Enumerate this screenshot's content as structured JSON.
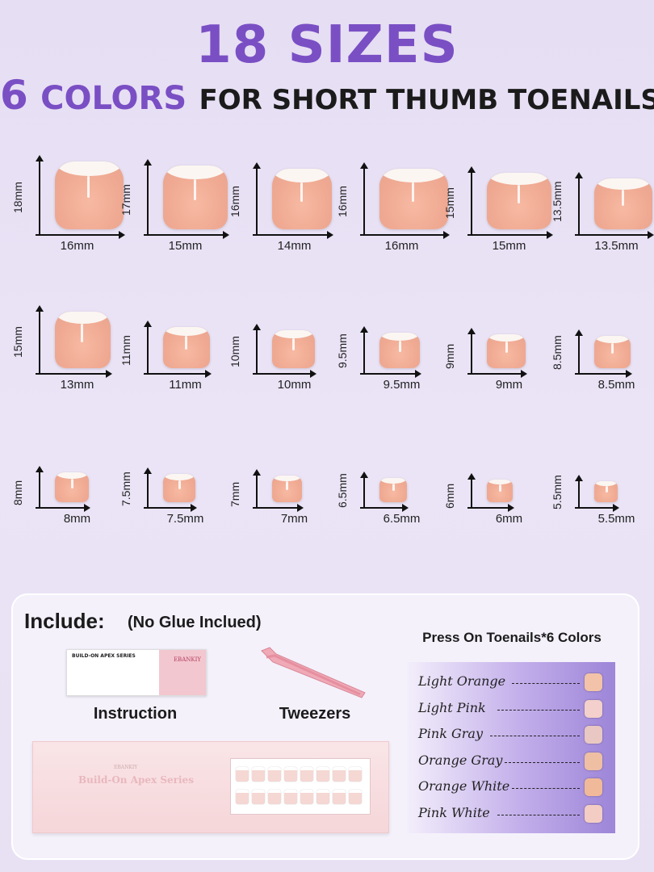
{
  "header": {
    "line1": "18 SIZES",
    "line2_number": "6",
    "line2_colors": "COLORS",
    "line2_rest": "FOR SHORT THUMB TOENAILS"
  },
  "sizes": [
    {
      "h": "18mm",
      "w": "16mm"
    },
    {
      "h": "17mm",
      "w": "15mm"
    },
    {
      "h": "16mm",
      "w": "14mm"
    },
    {
      "h": "16mm",
      "w": "16mm"
    },
    {
      "h": "15mm",
      "w": "15mm"
    },
    {
      "h": "13.5mm",
      "w": "13.5mm"
    },
    {
      "h": "15mm",
      "w": "13mm"
    },
    {
      "h": "11mm",
      "w": "11mm"
    },
    {
      "h": "10mm",
      "w": "10mm"
    },
    {
      "h": "9.5mm",
      "w": "9.5mm"
    },
    {
      "h": "9mm",
      "w": "9mm"
    },
    {
      "h": "8.5mm",
      "w": "8.5mm"
    },
    {
      "h": "8mm",
      "w": "8mm"
    },
    {
      "h": "7.5mm",
      "w": "7.5mm"
    },
    {
      "h": "7mm",
      "w": "7mm"
    },
    {
      "h": "6.5mm",
      "w": "6.5mm"
    },
    {
      "h": "6mm",
      "w": "6mm"
    },
    {
      "h": "5.5mm",
      "w": "5.5mm"
    }
  ],
  "include": {
    "title": "Include:",
    "note": "(No Glue Inclued)",
    "instruction_label": "Instruction",
    "tweezers_label": "Tweezers",
    "card_heading": "BUILD-ON APEX SERIES",
    "card_brand": "EBANKIY",
    "box_name": "Build-On Apex Series",
    "box_brand": "EBANKIY"
  },
  "colors": {
    "title": "Press On Toenails*6 Colors",
    "items": [
      {
        "name": "Light Orange",
        "swatch": "#f2c3a8"
      },
      {
        "name": "Light Pink",
        "swatch": "#f3d0cb"
      },
      {
        "name": "Pink Gray",
        "swatch": "#e9c8c3"
      },
      {
        "name": "Orange Gray",
        "swatch": "#efbfa4"
      },
      {
        "name": "Orange White",
        "swatch": "#f0b999"
      },
      {
        "name": "Pink White",
        "swatch": "#f3cdc4"
      }
    ]
  }
}
